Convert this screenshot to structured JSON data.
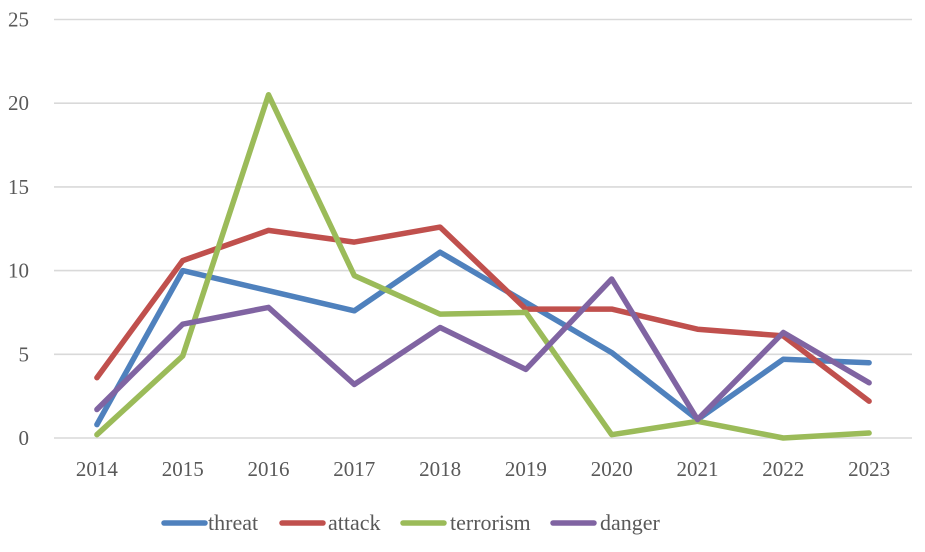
{
  "chart_data": {
    "type": "line",
    "title": "",
    "xlabel": "",
    "ylabel": "",
    "categories": [
      "2014",
      "2015",
      "2016",
      "2017",
      "2018",
      "2019",
      "2020",
      "2021",
      "2022",
      "2023"
    ],
    "ylim": [
      0,
      25
    ],
    "yticks": [
      0,
      5,
      10,
      15,
      20,
      25
    ],
    "ytick_labels": [
      "0",
      "5",
      "10",
      "15",
      "20",
      "25"
    ],
    "grid": "horizontal",
    "legend_position": "bottom",
    "series": [
      {
        "name": "threat",
        "color": "#4F81BD",
        "values": [
          0.8,
          10.0,
          8.8,
          7.6,
          11.1,
          8.1,
          5.1,
          1.1,
          4.7,
          4.5
        ]
      },
      {
        "name": "attack",
        "color": "#C0504D",
        "values": [
          3.6,
          10.6,
          12.4,
          11.7,
          12.6,
          7.7,
          7.7,
          6.5,
          6.1,
          2.2
        ]
      },
      {
        "name": "terrorism",
        "color": "#9BBB59",
        "values": [
          0.2,
          4.9,
          20.5,
          9.7,
          7.4,
          7.5,
          0.2,
          1.0,
          0.0,
          0.3
        ]
      },
      {
        "name": "danger",
        "color": "#8064A2",
        "values": [
          1.7,
          6.8,
          7.8,
          3.2,
          6.6,
          4.1,
          9.5,
          1.1,
          6.3,
          3.3
        ]
      }
    ]
  }
}
